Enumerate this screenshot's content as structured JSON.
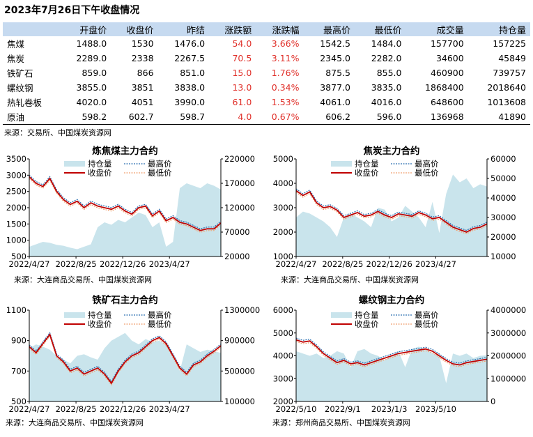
{
  "page": {
    "title": "2023年7月26日下午收盘情况",
    "table_source": "来源：交易所、中国煤炭资源网"
  },
  "quote_table": {
    "headers": [
      "",
      "开盘价",
      "收盘价",
      "昨结",
      "涨跌额",
      "涨跌幅",
      "最高价",
      "最低价",
      "成交量",
      "持仓量"
    ],
    "rows": [
      [
        "焦煤",
        "1488.0",
        "1530",
        "1476.0",
        "54.0",
        "3.66%",
        "1542.5",
        "1484.0",
        "157700",
        "157225"
      ],
      [
        "焦炭",
        "2289.0",
        "2338",
        "2267.5",
        "70.5",
        "3.11%",
        "2345.0",
        "2282.0",
        "34600",
        "45849"
      ],
      [
        "铁矿石",
        "859.0",
        "866",
        "851.0",
        "15.0",
        "1.76%",
        "875.5",
        "855.0",
        "460900",
        "739757"
      ],
      [
        "螺纹钢",
        "3855.0",
        "3851",
        "3838.0",
        "13.0",
        "0.34%",
        "3877.0",
        "3835.0",
        "1868400",
        "2018640"
      ],
      [
        "热轧卷板",
        "4020.0",
        "4051",
        "3990.0",
        "61.0",
        "1.53%",
        "4061.0",
        "4016.0",
        "648600",
        "1013608"
      ],
      [
        "原油",
        "598.2",
        "602.7",
        "598.7",
        "4.0",
        "0.67%",
        "606.2",
        "596.0",
        "136968",
        "41890"
      ]
    ],
    "up_color": "#e0302a"
  },
  "chart_data": [
    {
      "type": "line",
      "title": "炼焦煤主力合约",
      "source": "来源：大连商品交易所、中国煤炭资源网",
      "legend": [
        "持仓量",
        "最高价",
        "收盘价",
        "最低价"
      ],
      "legend_position": "top",
      "x_tick_labels": [
        "2022/4/27",
        "2022/8/25",
        "2022/12/26",
        "2023/4/27"
      ],
      "y_left": {
        "range": [
          500,
          3500
        ],
        "ticks": [
          500,
          1000,
          1500,
          2000,
          2500,
          3000,
          3500
        ]
      },
      "y_right": {
        "range": [
          20000,
          220000
        ],
        "ticks": [
          20000,
          70000,
          120000,
          170000,
          220000
        ]
      },
      "close": [
        2950,
        2750,
        2650,
        2900,
        2500,
        2250,
        2100,
        2200,
        2000,
        2150,
        2050,
        2000,
        1950,
        2050,
        1900,
        1800,
        2000,
        2050,
        1750,
        1900,
        1600,
        1700,
        1550,
        1500,
        1400,
        1300,
        1350,
        1350,
        1530
      ],
      "open_interest": [
        40000,
        45000,
        50000,
        48000,
        44000,
        42000,
        38000,
        35000,
        40000,
        45000,
        80000,
        90000,
        85000,
        95000,
        90000,
        100000,
        110000,
        105000,
        80000,
        90000,
        40000,
        50000,
        160000,
        170000,
        165000,
        160000,
        170000,
        165000,
        157225
      ],
      "colors": {
        "open_interest": "#c9e4ec",
        "high": "#2a6eb0",
        "close": "#c00000",
        "low": "#f0a070"
      }
    },
    {
      "type": "line",
      "title": "焦炭主力合约",
      "source": "来源：大连商品交易所、中国煤炭资源网",
      "legend": [
        "持仓量",
        "最高价",
        "收盘价",
        "最低价"
      ],
      "legend_position": "top",
      "x_tick_labels": [
        "2022/4/27",
        "2022/8/25",
        "2022/12/26",
        "2023/4/27"
      ],
      "y_left": {
        "range": [
          1000,
          5000
        ],
        "ticks": [
          1000,
          2000,
          3000,
          4000,
          5000
        ]
      },
      "y_right": {
        "range": [
          10000,
          60000
        ],
        "ticks": [
          10000,
          20000,
          30000,
          40000,
          50000,
          60000
        ]
      },
      "close": [
        3700,
        3500,
        3650,
        3200,
        3000,
        3050,
        2900,
        2600,
        2700,
        2800,
        2650,
        2700,
        2850,
        2700,
        2600,
        2750,
        2700,
        2650,
        2800,
        2700,
        2550,
        2600,
        2400,
        2200,
        2100,
        2000,
        2150,
        2200,
        2338
      ],
      "open_interest": [
        30000,
        33000,
        32000,
        30000,
        28000,
        25000,
        20000,
        30000,
        32000,
        30000,
        28000,
        25000,
        35000,
        34000,
        28000,
        30000,
        36000,
        33000,
        30000,
        25000,
        38000,
        22000,
        42000,
        52000,
        48000,
        50000,
        45000,
        47000,
        45849
      ],
      "colors": {
        "open_interest": "#c9e4ec",
        "high": "#2a6eb0",
        "close": "#c00000",
        "low": "#f0a070"
      }
    },
    {
      "type": "line",
      "title": "铁矿石主力合约",
      "source": "来源：大连商品交易所、中国煤炭资源网",
      "legend": [
        "持仓量",
        "最高价",
        "收盘价",
        "最低价"
      ],
      "legend_position": "top",
      "x_tick_labels": [
        "2022/4/27",
        "2022/8/25",
        "2022/12/26",
        "2023/4/27"
      ],
      "y_left": {
        "range": [
          500,
          1100
        ],
        "ticks": [
          500,
          700,
          900,
          1100
        ]
      },
      "y_right": {
        "range": [
          100000,
          1300000
        ],
        "ticks": [
          100000,
          500000,
          900000,
          1300000
        ]
      },
      "close": [
        860,
        820,
        880,
        940,
        800,
        760,
        700,
        720,
        680,
        700,
        720,
        680,
        620,
        700,
        760,
        800,
        820,
        860,
        900,
        920,
        880,
        800,
        720,
        680,
        740,
        760,
        800,
        830,
        866
      ],
      "open_interest": [
        800000,
        850000,
        820000,
        780000,
        700000,
        650000,
        600000,
        700000,
        720000,
        680000,
        650000,
        800000,
        900000,
        950000,
        1000000,
        900000,
        850000,
        920000,
        880000,
        900000,
        850000,
        700000,
        500000,
        850000,
        800000,
        750000,
        780000,
        760000,
        739757
      ],
      "colors": {
        "open_interest": "#c9e4ec",
        "high": "#2a6eb0",
        "close": "#c00000",
        "low": "#f0a070"
      }
    },
    {
      "type": "line",
      "title": "螺纹钢主力合约",
      "source": "来源：郑州商品交易所、中国煤炭资源网",
      "legend": [
        "持仓量",
        "最高价",
        "收盘价",
        "最低价"
      ],
      "legend_position": "top",
      "x_tick_labels": [
        "2022/5/10",
        "2022/9/1",
        "2023/1/3",
        "2023/5/10"
      ],
      "y_left": {
        "range": [
          2000,
          6000
        ],
        "ticks": [
          2000,
          3000,
          4000,
          5000,
          6000
        ]
      },
      "y_right": {
        "range": [
          0,
          4000000
        ],
        "ticks": [
          0,
          1000000,
          2000000,
          3000000,
          4000000
        ]
      },
      "close": [
        4700,
        4600,
        4650,
        4400,
        4100,
        3900,
        3700,
        3800,
        3650,
        3700,
        3600,
        3700,
        3800,
        3900,
        4000,
        4100,
        4150,
        4200,
        4250,
        4300,
        4200,
        4000,
        3800,
        3650,
        3600,
        3700,
        3750,
        3800,
        3851
      ],
      "open_interest": [
        2200000,
        2100000,
        2000000,
        2100000,
        1900000,
        2000000,
        2200000,
        2100000,
        1500000,
        2200000,
        2300000,
        2100000,
        2000000,
        1800000,
        2000000,
        2200000,
        1500000,
        2300000,
        2400000,
        2300000,
        2100000,
        2000000,
        800000,
        2100000,
        2000000,
        2100000,
        1900000,
        2000000,
        2018640
      ],
      "colors": {
        "open_interest": "#c9e4ec",
        "high": "#2a6eb0",
        "close": "#c00000",
        "low": "#f0a070"
      }
    }
  ]
}
